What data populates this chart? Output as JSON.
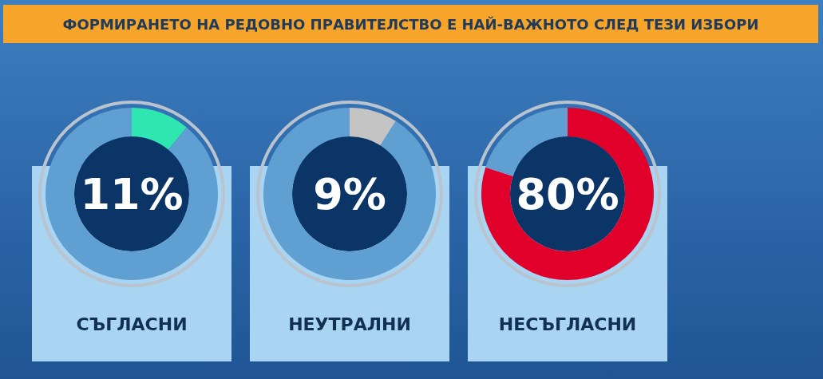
{
  "chart_data": [
    {
      "type": "donut",
      "title": "ФОРМИРАНЕТО НА РЕДОВНО ПРАВИТЕЛСТВО Е НАЙ-ВАЖНОТО СЛЕД ТЕЗИ ИЗБОРИ",
      "xlabel": "СЪГЛАСНИ",
      "categories": [
        null,
        null
      ],
      "values": [
        11,
        89
      ],
      "colors": [
        "#2fe6b0",
        "#5f9fd2"
      ],
      "value_labels": [
        "11%",
        null
      ]
    },
    {
      "type": "donut",
      "xlabel": "НЕУТРАЛНИ",
      "categories": [
        null,
        null
      ],
      "values": [
        9,
        91
      ],
      "colors": [
        "#c4c4c4",
        "#5f9fd2"
      ],
      "value_labels": [
        "9%",
        null
      ]
    },
    {
      "type": "donut",
      "xlabel": "НЕСЪГЛАСНИ",
      "categories": [
        null,
        null
      ],
      "values": [
        80,
        20
      ],
      "colors": [
        "#e0002a",
        "#5f9fd2"
      ],
      "value_labels": [
        "80%",
        null
      ]
    }
  ]
}
